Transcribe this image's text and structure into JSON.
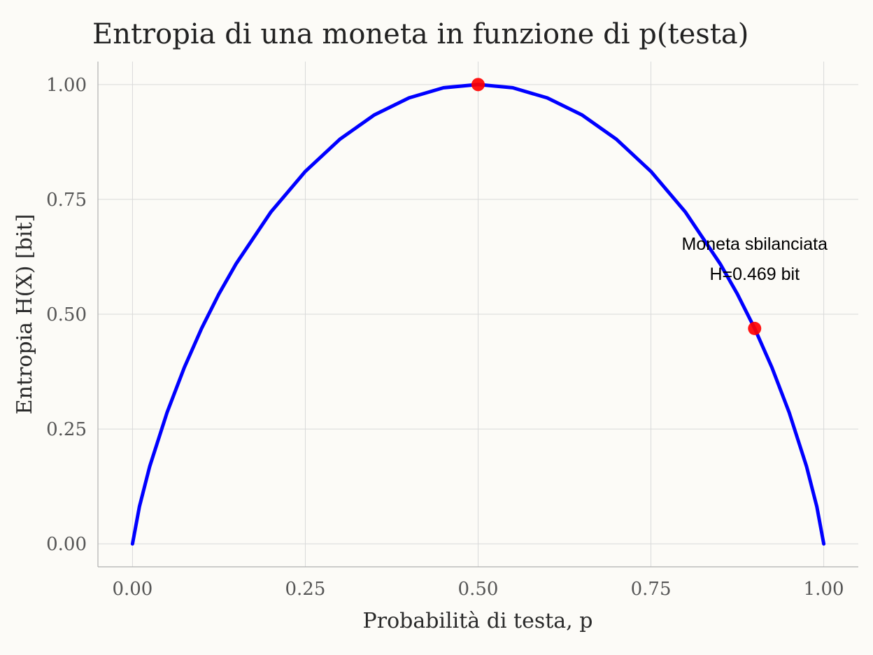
{
  "chart_data": {
    "type": "line",
    "title": "Entropia di una moneta in funzione di p(testa)",
    "xlabel": "Probabilità di testa, p",
    "ylabel": "Entropia H(X) [bit]",
    "xlim": [
      -0.05,
      1.05
    ],
    "ylim": [
      -0.05,
      1.05
    ],
    "x_ticks": [
      0,
      0.25,
      0.5,
      0.75,
      1
    ],
    "x_tick_labels": [
      "0.00",
      "0.25",
      "0.50",
      "0.75",
      "1.00"
    ],
    "y_ticks": [
      0,
      0.25,
      0.5,
      0.75,
      1
    ],
    "y_tick_labels": [
      "0.00",
      "0.25",
      "0.50",
      "0.75",
      "1.00"
    ],
    "grid": true,
    "series": [
      {
        "color": "#0000ff",
        "x": [
          0,
          0.01,
          0.025,
          0.05,
          0.075,
          0.1,
          0.125,
          0.15,
          0.2,
          0.25,
          0.3,
          0.35,
          0.4,
          0.45,
          0.5,
          0.55,
          0.6,
          0.65,
          0.7,
          0.75,
          0.8,
          0.85,
          0.875,
          0.9,
          0.925,
          0.95,
          0.975,
          0.99,
          1
        ],
        "y": [
          0,
          0.081,
          0.169,
          0.286,
          0.384,
          0.469,
          0.544,
          0.61,
          0.722,
          0.811,
          0.881,
          0.934,
          0.971,
          0.993,
          1,
          0.993,
          0.971,
          0.934,
          0.881,
          0.811,
          0.722,
          0.61,
          0.544,
          0.469,
          0.384,
          0.286,
          0.169,
          0.081,
          0
        ]
      }
    ],
    "points": [
      {
        "x": 0.5,
        "y": 1.0,
        "color": "#ff0000"
      },
      {
        "x": 0.9,
        "y": 0.469,
        "color": "#ff0000"
      }
    ],
    "annotation": {
      "x": 0.9,
      "y": 0.62,
      "lines": [
        "Moneta sbilanciata",
        "H=0.469 bit"
      ]
    }
  }
}
